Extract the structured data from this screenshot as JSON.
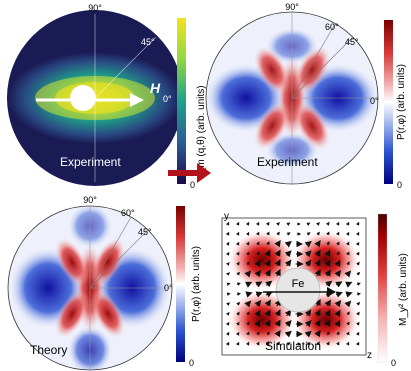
{
  "angles": {
    "a90": "90°",
    "a45": "45°",
    "a60": "60°",
    "a0": "0°"
  },
  "panel_a": {
    "caption": "Experiment",
    "field_label": "H",
    "colorbar_label": "I_m (q,θ) (arb. units)",
    "colorbar_top": "",
    "colorbar_bottom": "0",
    "colors": [
      "#1a0a4a",
      "#2a5d96",
      "#1fa189",
      "#8fd744",
      "#f3e31e"
    ]
  },
  "panel_b": {
    "caption": "Experiment",
    "colorbar_label": "P(r,φ) (arb. units)",
    "colorbar_top": "",
    "colorbar_bottom": "0"
  },
  "panel_c": {
    "caption": "Theory",
    "colorbar_label": "P(r,φ) (arb. units)",
    "colorbar_top": "",
    "colorbar_bottom": "0"
  },
  "panel_d": {
    "caption": "Simulation",
    "particle_label": "Fe",
    "axis_y": "y",
    "axis_z": "z",
    "colorbar_label": "M_y² (arb. units)",
    "colorbar_top": "",
    "colorbar_bottom": "0"
  },
  "colors": {
    "diverging": [
      "#00007a",
      "#2b55d0",
      "#b9c8f2",
      "#ffffff",
      "#f2b4b4",
      "#d63a3a",
      "#7a0000"
    ],
    "sequential_red": [
      "#ffffff",
      "#f6b0b0",
      "#e03b3b",
      "#a00000",
      "#4a0000"
    ],
    "arrow_red": "#b3121b"
  }
}
